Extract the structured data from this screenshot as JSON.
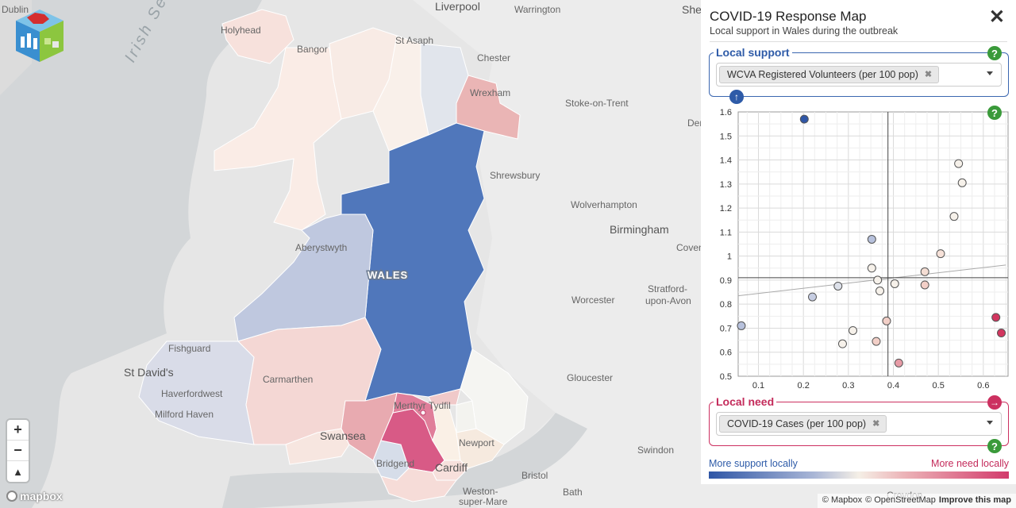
{
  "map": {
    "places": [
      {
        "name": "Dublin"
      },
      {
        "name": "Irish Sea"
      },
      {
        "name": "Liverpool"
      },
      {
        "name": "Warrington"
      },
      {
        "name": "Sheffield"
      },
      {
        "name": "Holyhead"
      },
      {
        "name": "Bangor"
      },
      {
        "name": "St Asaph"
      },
      {
        "name": "Chester"
      },
      {
        "name": "Wrexham"
      },
      {
        "name": "Stoke-on-Trent"
      },
      {
        "name": "Derby"
      },
      {
        "name": "Shrewsbury"
      },
      {
        "name": "Wolverhampton"
      },
      {
        "name": "Birmingham"
      },
      {
        "name": "Coventry"
      },
      {
        "name": "Aberystwyth"
      },
      {
        "name": "WALES"
      },
      {
        "name": "Stratford-"
      },
      {
        "name": "upon-Avon"
      },
      {
        "name": "Worcester"
      },
      {
        "name": "Fishguard"
      },
      {
        "name": "St David's"
      },
      {
        "name": "Carmarthen"
      },
      {
        "name": "Haverfordwest"
      },
      {
        "name": "Milford Haven"
      },
      {
        "name": "Gloucester"
      },
      {
        "name": "Merthyr Tydfil"
      },
      {
        "name": "Swansea"
      },
      {
        "name": "Newport"
      },
      {
        "name": "Bridgend"
      },
      {
        "name": "Cardiff"
      },
      {
        "name": "Bristol"
      },
      {
        "name": "Swindon"
      },
      {
        "name": "Weston-"
      },
      {
        "name": "super-Mare"
      },
      {
        "name": "Bath"
      },
      {
        "name": "Croydon"
      }
    ],
    "region_colors": {
      "anglesey": "#f7e1dc",
      "gwynedd": "#faece6",
      "conwy": "#f8ebe5",
      "denbigh": "#f9f0ea",
      "flint": "#e1e5ec",
      "wrexham": "#eab5b5",
      "powys": "#5077bb",
      "ceredigion": "#bfc8df",
      "pembroke": "#d9dce8",
      "carmarthen": "#f4d7d4",
      "swansea": "#f7e6e0",
      "npt": "#e8aab0",
      "bridgend": "#d6dde9",
      "rct": "#d85a86",
      "merthyr": "#e07e9a",
      "caerphilly": "#faf0e6",
      "blaenau": "#f0c9c9",
      "torfaen": "#f3f3ef",
      "monmouth": "#f5f5f2",
      "newport": "#f6eadf",
      "cardiff": "#f7e0dc",
      "vale": "#f6dcd8"
    },
    "zoom_in": "+",
    "zoom_out": "−",
    "reset_north": "▲"
  },
  "mapbox_logo": "mapbox",
  "attribution": {
    "mapbox": "© Mapbox",
    "osm": "© OpenStreetMap",
    "improve": "Improve this map"
  },
  "panel": {
    "title": "COVID-19 Response Map",
    "subtitle": "Local support in Wales during the outbreak",
    "close": "✕",
    "support": {
      "legend": "Local support",
      "chip": "WCVA Registered Volunteers (per 100 pop)",
      "chip_remove": "✖",
      "help": "?",
      "axis_btn": "↑"
    },
    "need": {
      "legend": "Local need",
      "chip": "COVID-19 Cases (per 100 pop)",
      "chip_remove": "✖",
      "help": "?",
      "axis_btn": "→"
    },
    "chart_help": "?",
    "gradient": {
      "left": "More support locally",
      "right": "More need locally"
    }
  },
  "chart_data": {
    "type": "scatter",
    "xlabel": "",
    "ylabel": "",
    "xlim": [
      0.055,
      0.655
    ],
    "ylim": [
      0.5,
      1.6
    ],
    "xticks": [
      0.1,
      0.2,
      0.3,
      0.4,
      0.5,
      0.6
    ],
    "xtick_labels": [
      "0.1",
      "0.2",
      "0.3",
      "0.4",
      "0.5",
      "0.6"
    ],
    "yticks": [
      0.5,
      0.6,
      0.7,
      0.8,
      0.9,
      1.0,
      1.1,
      1.2,
      1.3,
      1.4,
      1.5,
      1.6
    ],
    "ytick_labels": [
      "0.5",
      "0.6",
      "0.7",
      "0.8",
      "0.9",
      "1",
      "1.1",
      "1.2",
      "1.3",
      "1.4",
      "1.5",
      "1.6"
    ],
    "grid": true,
    "mean_x": 0.388,
    "mean_y": 0.91,
    "trend": {
      "x": [
        0.055,
        0.65
      ],
      "y": [
        0.835,
        0.963
      ]
    },
    "points": [
      {
        "x": 0.202,
        "y": 1.57,
        "color": "#2f56a6"
      },
      {
        "x": 0.545,
        "y": 1.385,
        "color": "#f6f1ea"
      },
      {
        "x": 0.553,
        "y": 1.305,
        "color": "#f6f1ea"
      },
      {
        "x": 0.535,
        "y": 1.165,
        "color": "#f6f1ea"
      },
      {
        "x": 0.352,
        "y": 1.07,
        "color": "#b7c1dc"
      },
      {
        "x": 0.505,
        "y": 1.01,
        "color": "#f6e1d8"
      },
      {
        "x": 0.352,
        "y": 0.95,
        "color": "#f6f1ea"
      },
      {
        "x": 0.47,
        "y": 0.935,
        "color": "#f4ddd3"
      },
      {
        "x": 0.365,
        "y": 0.9,
        "color": "#f6f1ea"
      },
      {
        "x": 0.403,
        "y": 0.885,
        "color": "#f6f1ea"
      },
      {
        "x": 0.47,
        "y": 0.88,
        "color": "#f2cfc7"
      },
      {
        "x": 0.277,
        "y": 0.875,
        "color": "#dde1ea"
      },
      {
        "x": 0.37,
        "y": 0.855,
        "color": "#f6f1ea"
      },
      {
        "x": 0.22,
        "y": 0.83,
        "color": "#c6cde2"
      },
      {
        "x": 0.062,
        "y": 0.71,
        "color": "#b7c1dc"
      },
      {
        "x": 0.31,
        "y": 0.69,
        "color": "#f6f1ea"
      },
      {
        "x": 0.385,
        "y": 0.73,
        "color": "#f2cfc7"
      },
      {
        "x": 0.287,
        "y": 0.635,
        "color": "#f6f1ea"
      },
      {
        "x": 0.362,
        "y": 0.645,
        "color": "#f2cfc7"
      },
      {
        "x": 0.412,
        "y": 0.555,
        "color": "#e79ba6"
      },
      {
        "x": 0.628,
        "y": 0.745,
        "color": "#d2365f"
      },
      {
        "x": 0.64,
        "y": 0.68,
        "color": "#d2365f"
      }
    ]
  }
}
